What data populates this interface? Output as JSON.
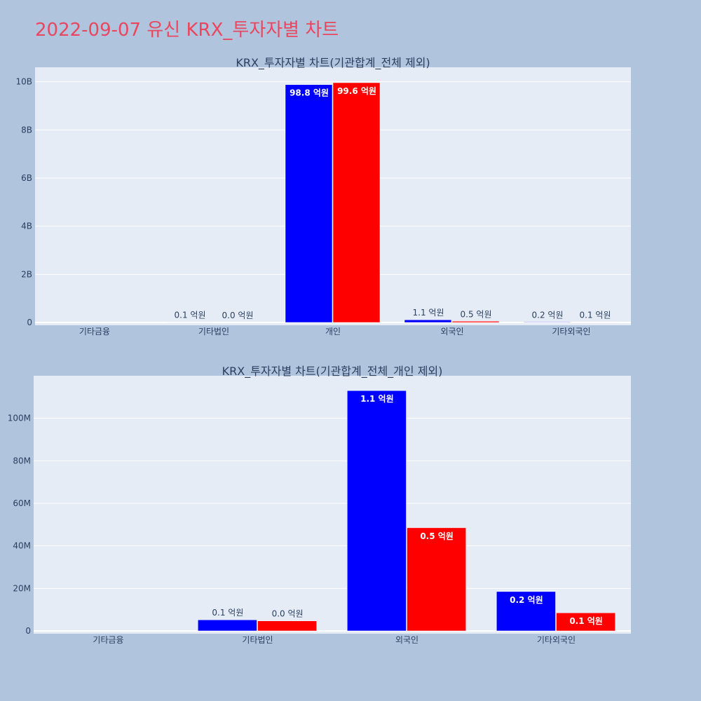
{
  "page_title": "2022-09-07 유신 KRX_투자자별 차트",
  "colors": {
    "series_1": "#0000ff",
    "series_2": "#ff0000",
    "plot_bg": "#e5ecf6",
    "page_bg": "#b0c4de",
    "title": "#e8475f"
  },
  "chart_data": [
    {
      "type": "bar",
      "title": "KRX_투자자별 차트(기관합계_전체 제외)",
      "categories": [
        "기타금융",
        "기타법인",
        "개인",
        "외국인",
        "기타외국인"
      ],
      "series": [
        {
          "color": "#0000ff",
          "values": [
            0,
            10000000,
            9880000000,
            110000000,
            20000000
          ],
          "labels": [
            "",
            "0.1 억원",
            "98.8 억원",
            "1.1 억원",
            "0.2 억원"
          ]
        },
        {
          "color": "#ff0000",
          "values": [
            0,
            0,
            9960000000,
            50000000,
            10000000
          ],
          "labels": [
            "",
            "0.0 억원",
            "99.6 억원",
            "0.5 억원",
            "0.1 억원"
          ]
        }
      ],
      "ylim": [
        0,
        10600000000
      ],
      "yticks": [
        0,
        2000000000,
        4000000000,
        6000000000,
        8000000000,
        10000000000
      ],
      "ytick_labels": [
        "0",
        "2B",
        "4B",
        "6B",
        "8B",
        "10B"
      ],
      "grid": true
    },
    {
      "type": "bar",
      "title": "KRX_투자자별 차트(기관합계_전체_개인 제외)",
      "categories": [
        "기타금융",
        "기타법인",
        "외국인",
        "기타외국인"
      ],
      "series": [
        {
          "color": "#0000ff",
          "values": [
            0,
            5200000,
            113000000,
            18500000
          ],
          "labels": [
            "",
            "0.1 억원",
            "1.1 억원",
            "0.2 억원"
          ]
        },
        {
          "color": "#ff0000",
          "values": [
            0,
            4700000,
            48500000,
            8500000
          ],
          "labels": [
            "",
            "0.0 억원",
            "0.5 억원",
            "0.1 억원"
          ]
        }
      ],
      "ylim": [
        0,
        120000000
      ],
      "yticks": [
        0,
        20000000,
        40000000,
        60000000,
        80000000,
        100000000
      ],
      "ytick_labels": [
        "0",
        "20M",
        "40M",
        "60M",
        "80M",
        "100M"
      ],
      "grid": true
    }
  ]
}
